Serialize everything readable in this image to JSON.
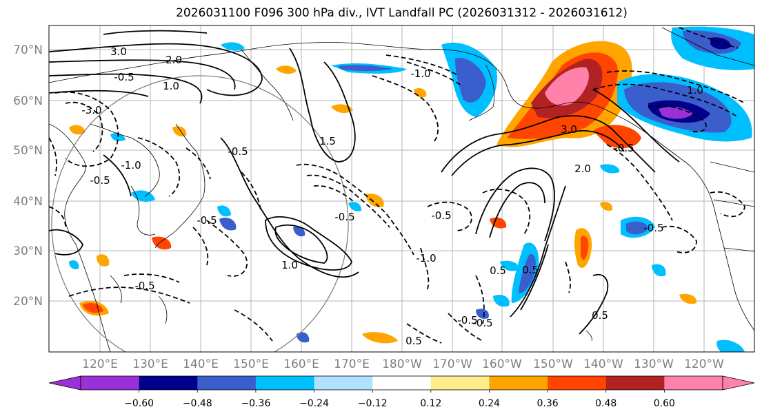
{
  "title": "2026031100 F096 300 hPa div., IVT Landfall PC (2026031312 - 2026031612)",
  "map": {
    "lat_labels": [
      "70°N",
      "60°N",
      "50°N",
      "40°N",
      "30°N",
      "20°N"
    ],
    "lon_labels": [
      "120°E",
      "130°E",
      "140°E",
      "150°E",
      "160°E",
      "170°E",
      "180°W",
      "170°W",
      "160°W",
      "150°W",
      "140°W",
      "130°W",
      "120°W"
    ],
    "contour_labels": [
      "3.0",
      "2.0",
      "1.0",
      "-0.5",
      "-3.0",
      "-0.5",
      "-1.0",
      "1.5",
      "-0.5",
      "-0.5",
      "-1.0",
      "-0.5",
      "1.0",
      "-0.5",
      "3.0",
      "2.0",
      "1.0",
      "-0.5",
      "-0.5",
      "0.5",
      "0.5",
      "-0.5",
      "-0.5",
      "0.5",
      "-1.0",
      "-0.5",
      "0.5"
    ]
  },
  "colorbar": {
    "ticks": [
      "−0.60",
      "−0.48",
      "−0.36",
      "−0.24",
      "−0.12",
      "0.12",
      "0.24",
      "0.36",
      "0.48",
      "0.60"
    ],
    "colors": [
      "#9b30d9",
      "#00008b",
      "#3a5fcd",
      "#00bfff",
      "#b0e2ff",
      "#ffffff",
      "#ffec8b",
      "#ffa500",
      "#ff4500",
      "#b22222",
      "#ff82ab",
      "#ff82ab"
    ]
  }
}
